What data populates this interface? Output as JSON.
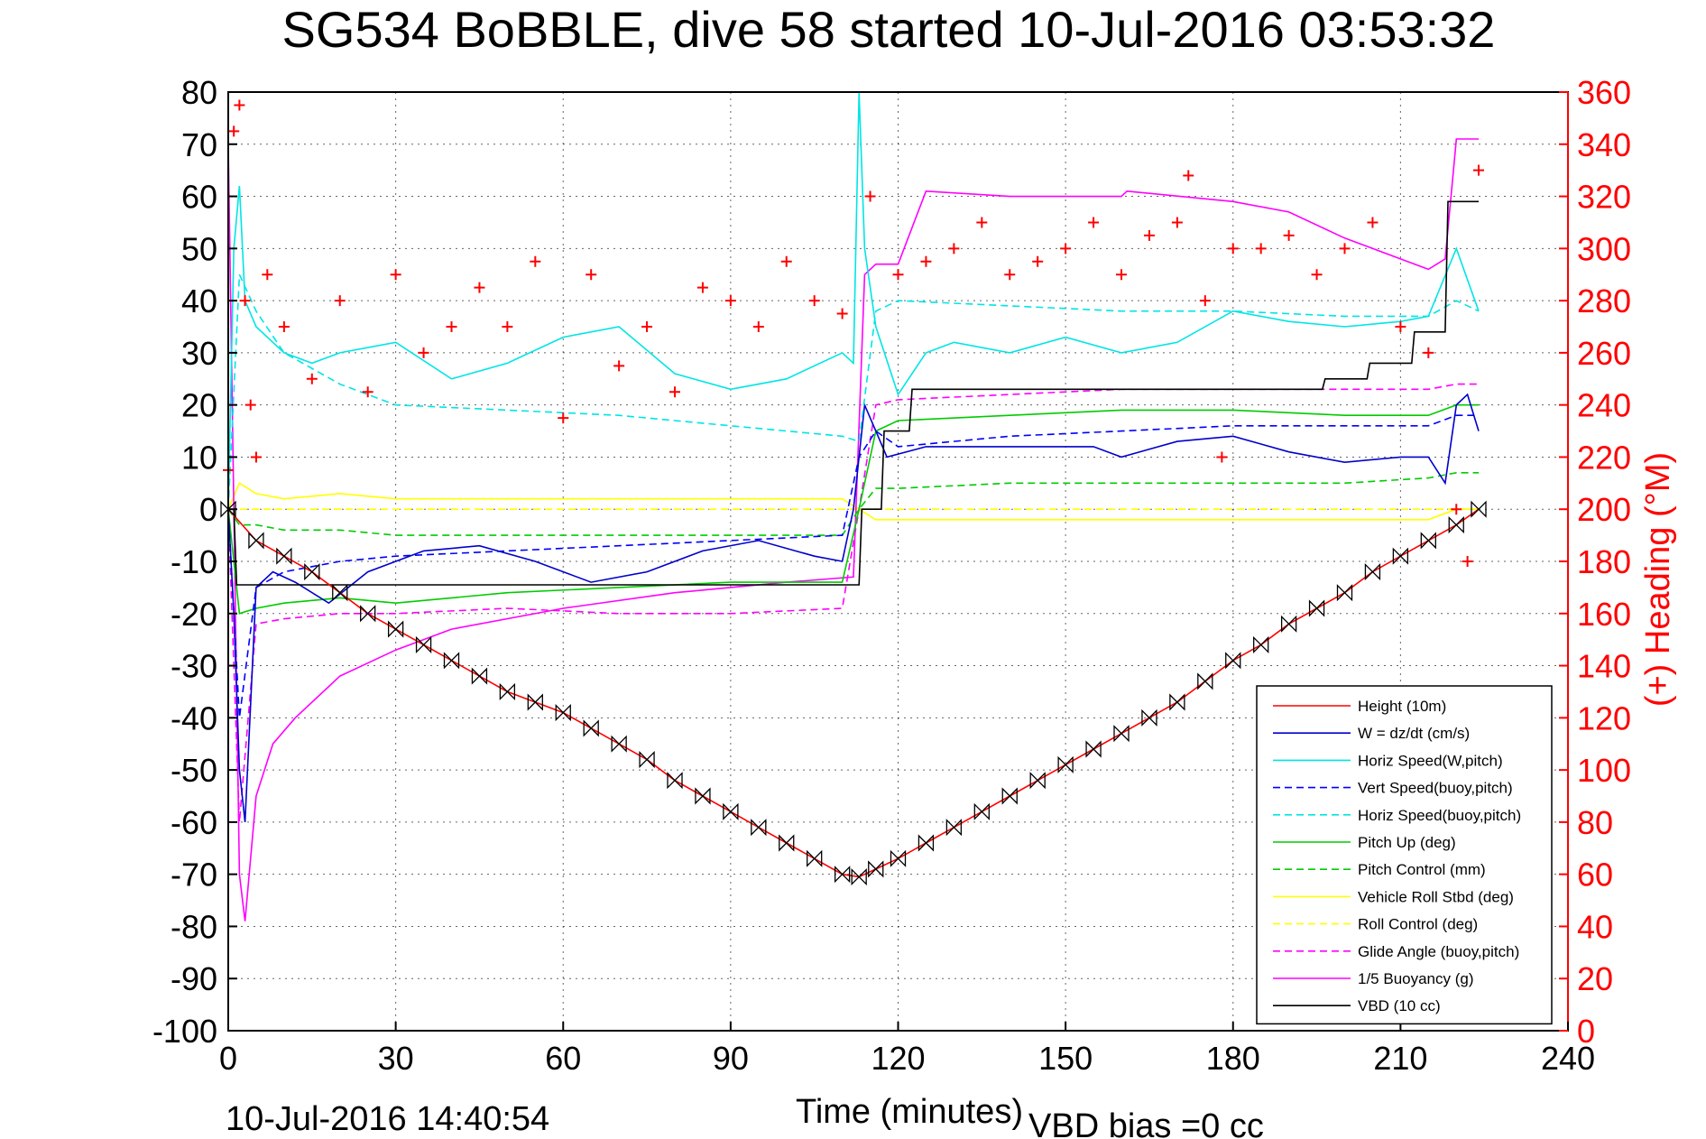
{
  "chart_data": {
    "type": "line",
    "title": "SG534 BoBBLE, dive 58 started 10-Jul-2016 03:53:32",
    "xlabel": "Time (minutes)",
    "ylabel": "",
    "y2label": "(+) Heading (°M)",
    "xlim": [
      0,
      240
    ],
    "ylim": [
      -100,
      80
    ],
    "y2lim": [
      0,
      360
    ],
    "xticks": [
      "0",
      "30",
      "60",
      "90",
      "120",
      "150",
      "180",
      "210",
      "240"
    ],
    "yticks": [
      "80",
      "70",
      "60",
      "50",
      "40",
      "30",
      "20",
      "10",
      "0",
      "-10",
      "-20",
      "-30",
      "-40",
      "-50",
      "-60",
      "-70",
      "-80",
      "-90",
      "-100"
    ],
    "y2ticks": [
      "360",
      "340",
      "320",
      "300",
      "280",
      "260",
      "240",
      "220",
      "200",
      "180",
      "160",
      "140",
      "120",
      "100",
      "80",
      "60",
      "40",
      "20",
      "0"
    ],
    "grid": true,
    "legend_position": "bottom-right",
    "footer_left": "10-Jul-2016 14:40:54",
    "footer_right": "VBD bias =0 cc",
    "series": [
      {
        "name": "Height (10m)",
        "color": "#ff0000",
        "style": "solid",
        "marker": "bowtie",
        "x": [
          0,
          5,
          10,
          15,
          20,
          25,
          30,
          35,
          40,
          45,
          50,
          55,
          60,
          65,
          70,
          75,
          80,
          85,
          90,
          95,
          100,
          105,
          110,
          113,
          116,
          120,
          125,
          130,
          135,
          140,
          145,
          150,
          155,
          160,
          165,
          170,
          175,
          180,
          185,
          190,
          195,
          200,
          205,
          210,
          215,
          220,
          224
        ],
        "y": [
          0,
          -6,
          -9,
          -12,
          -16,
          -20,
          -23,
          -26,
          -29,
          -32,
          -35,
          -37,
          -39,
          -42,
          -45,
          -48,
          -52,
          -55,
          -58,
          -61,
          -64,
          -67,
          -70,
          -70.5,
          -69,
          -67,
          -64,
          -61,
          -58,
          -55,
          -52,
          -49,
          -46,
          -43,
          -40,
          -37,
          -33,
          -29,
          -26,
          -22,
          -19,
          -16,
          -12,
          -9,
          -6,
          -3,
          0
        ]
      },
      {
        "name": "W = dz/dt (cm/s)",
        "color": "#0000cc",
        "style": "solid",
        "x": [
          0,
          1,
          2,
          3,
          5,
          8,
          12,
          18,
          25,
          35,
          45,
          55,
          65,
          75,
          85,
          95,
          105,
          110,
          112,
          114,
          116,
          118,
          125,
          135,
          145,
          155,
          160,
          170,
          180,
          190,
          200,
          210,
          215,
          218,
          220,
          222,
          224
        ],
        "y": [
          0,
          -20,
          -50,
          -60,
          -15,
          -12,
          -14,
          -18,
          -12,
          -8,
          -7,
          -10,
          -14,
          -12,
          -8,
          -6,
          -9,
          -10,
          0,
          20,
          15,
          10,
          12,
          12,
          12,
          12,
          10,
          13,
          14,
          11,
          9,
          10,
          10,
          5,
          20,
          22,
          15
        ]
      },
      {
        "name": "Horiz Speed(W,pitch)",
        "color": "#00e5e5",
        "style": "solid",
        "x": [
          0,
          1,
          2,
          3,
          5,
          10,
          15,
          20,
          30,
          40,
          50,
          60,
          70,
          80,
          90,
          100,
          110,
          112,
          113,
          114,
          116,
          120,
          125,
          130,
          140,
          150,
          160,
          170,
          180,
          190,
          200,
          210,
          215,
          220,
          224
        ],
        "y": [
          0,
          50,
          62,
          40,
          35,
          30,
          28,
          30,
          32,
          25,
          28,
          33,
          35,
          26,
          23,
          25,
          30,
          28,
          80,
          50,
          35,
          22,
          30,
          32,
          30,
          33,
          30,
          32,
          38,
          36,
          35,
          36,
          37,
          50,
          38
        ]
      },
      {
        "name": "Vert Speed(buoy,pitch)",
        "color": "#0000ff",
        "style": "dashed",
        "x": [
          0,
          2,
          5,
          10,
          20,
          30,
          50,
          70,
          90,
          110,
          113,
          116,
          120,
          140,
          160,
          180,
          200,
          215,
          220,
          224
        ],
        "y": [
          0,
          -40,
          -15,
          -12,
          -10,
          -9,
          -8,
          -7,
          -6,
          -5,
          10,
          15,
          12,
          14,
          15,
          16,
          16,
          16,
          18,
          18
        ]
      },
      {
        "name": "Horiz Speed(buoy,pitch)",
        "color": "#00e5e5",
        "style": "dashed",
        "x": [
          0,
          2,
          5,
          10,
          20,
          30,
          50,
          70,
          90,
          110,
          113,
          116,
          120,
          140,
          160,
          180,
          200,
          215,
          220,
          224
        ],
        "y": [
          0,
          45,
          38,
          30,
          24,
          20,
          19,
          18,
          16,
          14,
          13,
          38,
          40,
          39,
          38,
          38,
          37,
          37,
          40,
          38
        ]
      },
      {
        "name": "Pitch Up (deg)",
        "color": "#00cc00",
        "style": "solid",
        "x": [
          0,
          2,
          5,
          10,
          20,
          30,
          50,
          70,
          90,
          110,
          113,
          116,
          120,
          140,
          160,
          180,
          200,
          215,
          220,
          224
        ],
        "y": [
          0,
          -20,
          -19,
          -18,
          -17,
          -18,
          -16,
          -15,
          -14,
          -14,
          0,
          15,
          17,
          18,
          19,
          19,
          18,
          18,
          20,
          20
        ]
      },
      {
        "name": "Pitch Control (mm)",
        "color": "#00cc00",
        "style": "dashed",
        "x": [
          0,
          2,
          5,
          10,
          20,
          30,
          50,
          70,
          90,
          110,
          113,
          116,
          120,
          140,
          160,
          180,
          200,
          215,
          220,
          224
        ],
        "y": [
          0,
          -3,
          -3,
          -4,
          -4,
          -5,
          -5,
          -5,
          -5,
          -5,
          0,
          4,
          4,
          5,
          5,
          5,
          5,
          6,
          7,
          7
        ]
      },
      {
        "name": "Vehicle Roll Stbd (deg)",
        "color": "#ffff00",
        "style": "solid",
        "x": [
          0,
          2,
          5,
          10,
          20,
          30,
          50,
          70,
          90,
          110,
          113,
          116,
          120,
          140,
          160,
          180,
          200,
          215,
          220,
          224
        ],
        "y": [
          0,
          5,
          3,
          2,
          3,
          2,
          2,
          2,
          2,
          2,
          0,
          -2,
          -2,
          -2,
          -2,
          -2,
          -2,
          -2,
          0,
          0
        ]
      },
      {
        "name": "Roll Control (deg)",
        "color": "#ffff00",
        "style": "dashed",
        "x": [
          0,
          2,
          5,
          10,
          20,
          30,
          50,
          70,
          90,
          110,
          113,
          116,
          120,
          140,
          160,
          180,
          200,
          215,
          220,
          224
        ],
        "y": [
          0,
          0,
          0,
          0,
          0,
          0,
          0,
          0,
          0,
          0,
          0,
          0,
          0,
          0,
          0,
          0,
          0,
          0,
          0,
          0
        ]
      },
      {
        "name": "Glide Angle (buoy,pitch)",
        "color": "#ff00ff",
        "style": "dashed",
        "x": [
          0,
          2,
          5,
          10,
          20,
          30,
          50,
          70,
          90,
          110,
          113,
          116,
          120,
          140,
          160,
          180,
          200,
          215,
          220,
          224
        ],
        "y": [
          0,
          -60,
          -22,
          -21,
          -20,
          -20,
          -19,
          -20,
          -20,
          -19,
          0,
          20,
          21,
          22,
          23,
          23,
          23,
          23,
          24,
          24
        ]
      },
      {
        "name": "1/5 Buoyancy (g)",
        "color": "#ff00ff",
        "style": "solid",
        "x": [
          0,
          2,
          3,
          5,
          8,
          12,
          20,
          30,
          40,
          60,
          80,
          100,
          112,
          114,
          116,
          120,
          125,
          140,
          160,
          161,
          180,
          190,
          200,
          205,
          210,
          215,
          218,
          220,
          224
        ],
        "y": [
          70,
          -70,
          -79,
          -55,
          -45,
          -40,
          -32,
          -27,
          -23,
          -19,
          -16,
          -14,
          -13,
          45,
          47,
          47,
          61,
          60,
          60,
          61,
          59,
          57,
          52,
          50,
          48,
          46,
          48,
          71,
          71
        ]
      },
      {
        "name": "VBD (10 cc)",
        "color": "#000000",
        "style": "solid",
        "x": [
          0,
          1,
          1.5,
          60,
          113,
          113.5,
          117,
          117.5,
          122,
          122.5,
          196,
          196.5,
          204,
          204.5,
          212,
          212.5,
          218,
          218.5,
          224
        ],
        "y": [
          0,
          0,
          -14.5,
          -14.5,
          -14.5,
          0,
          0,
          15,
          15,
          23,
          23,
          25,
          25,
          28,
          28,
          34,
          34,
          59,
          59
        ]
      }
    ],
    "heading": {
      "name": "(+) Heading",
      "color": "#ff0000",
      "marker": "+",
      "axis": "right",
      "x": [
        0,
        1,
        2,
        3,
        4,
        5,
        7,
        10,
        15,
        20,
        25,
        30,
        35,
        40,
        45,
        50,
        55,
        60,
        65,
        70,
        75,
        80,
        85,
        90,
        95,
        100,
        105,
        110,
        115,
        120,
        125,
        130,
        135,
        140,
        145,
        150,
        155,
        160,
        165,
        170,
        172,
        175,
        178,
        180,
        185,
        190,
        195,
        200,
        205,
        210,
        215,
        220,
        222,
        224
      ],
      "y": [
        215,
        345,
        355,
        280,
        240,
        220,
        290,
        270,
        250,
        280,
        245,
        290,
        260,
        270,
        285,
        270,
        295,
        235,
        290,
        255,
        270,
        245,
        285,
        280,
        270,
        295,
        280,
        275,
        320,
        290,
        295,
        300,
        310,
        290,
        295,
        300,
        310,
        290,
        305,
        310,
        328,
        280,
        220,
        300,
        300,
        305,
        290,
        300,
        310,
        270,
        260,
        200,
        180,
        330
      ]
    }
  }
}
